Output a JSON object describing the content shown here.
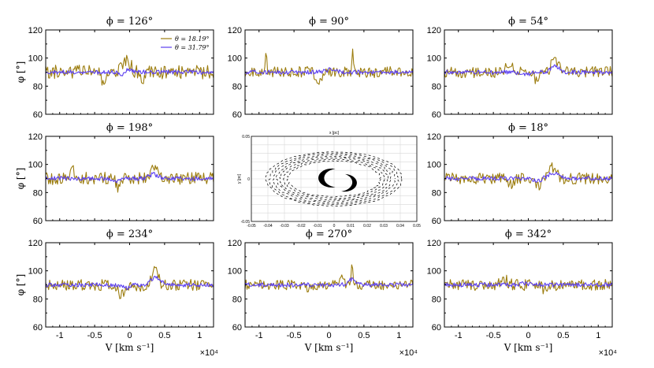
{
  "figure": {
    "y_label": "φ [°]",
    "x_label": "V [km s⁻¹]",
    "x_exponent": "×10⁴",
    "legend": [
      "θ = 18.19°",
      "θ = 31.79°"
    ],
    "colors": {
      "series1": "#9c7d0f",
      "series2": "#5b3ff0",
      "frame": "#000000"
    }
  },
  "chart_data": [
    {
      "type": "line",
      "title": "ϕ = 126°",
      "x_range": [
        -12000,
        12000
      ],
      "ylim": [
        60,
        120
      ],
      "yticks": [
        "60",
        "80",
        "100",
        "120"
      ],
      "has_legend": true,
      "series": [
        {
          "name": "θ = 18.19°",
          "mean": 90,
          "amplitude": 5,
          "seed": 11,
          "bumps": [
            [
              -500,
              8,
              600
            ],
            [
              -3800,
              -8,
              300
            ],
            [
              1800,
              -6,
              300
            ]
          ]
        },
        {
          "name": "θ = 31.79°",
          "mean": 90,
          "amplitude": 1.5,
          "seed": 12,
          "bumps": [
            [
              -500,
              2,
              700
            ],
            [
              -1200,
              -3,
              400
            ]
          ]
        }
      ]
    },
    {
      "type": "line",
      "title": "ϕ = 90°",
      "x_range": [
        -12000,
        12000
      ],
      "ylim": [
        60,
        120
      ],
      "yticks": [
        "60",
        "80",
        "100",
        "120"
      ],
      "series": [
        {
          "name": "θ = 18.19°",
          "mean": 90,
          "amplitude": 4,
          "seed": 21,
          "bumps": [
            [
              3400,
              16,
              120
            ],
            [
              -9000,
              12,
              120
            ],
            [
              -1500,
              -5,
              400
            ]
          ]
        },
        {
          "name": "θ = 31.79°",
          "mean": 90,
          "amplitude": 1.5,
          "seed": 22,
          "bumps": [
            [
              300,
              2,
              600
            ]
          ]
        }
      ]
    },
    {
      "type": "line",
      "title": "ϕ = 54°",
      "x_range": [
        -12000,
        12000
      ],
      "ylim": [
        60,
        120
      ],
      "yticks": [
        "60",
        "80",
        "100",
        "120"
      ],
      "series": [
        {
          "name": "θ = 18.19°",
          "mean": 90,
          "amplitude": 4,
          "seed": 31,
          "bumps": [
            [
              3800,
              9,
              500
            ],
            [
              -2500,
              7,
              500
            ],
            [
              1200,
              -5,
              400
            ]
          ]
        },
        {
          "name": "θ = 31.79°",
          "mean": 90,
          "amplitude": 1.5,
          "seed": 32,
          "bumps": [
            [
              3800,
              4,
              600
            ],
            [
              -500,
              -2,
              600
            ]
          ]
        }
      ]
    },
    {
      "type": "line",
      "title": "ϕ = 198°",
      "x_range": [
        -12000,
        12000
      ],
      "ylim": [
        60,
        120
      ],
      "yticks": [
        "60",
        "80",
        "100",
        "120"
      ],
      "series": [
        {
          "name": "θ = 18.19°",
          "mean": 90,
          "amplitude": 4.5,
          "seed": 41,
          "bumps": [
            [
              3400,
              10,
              400
            ],
            [
              -1500,
              -6,
              400
            ],
            [
              -8000,
              5,
              400
            ]
          ]
        },
        {
          "name": "θ = 31.79°",
          "mean": 90,
          "amplitude": 1.5,
          "seed": 42,
          "bumps": [
            [
              3400,
              3,
              600
            ],
            [
              -1800,
              -2,
              500
            ]
          ]
        }
      ]
    },
    {
      "type": "scatter",
      "title": "",
      "is_inset": true,
      "xlabel": "x [pc]",
      "ylabel": "y [pc]",
      "xlim": [
        -0.05,
        0.05
      ],
      "ylim": [
        -0.05,
        0.05
      ],
      "xticks": [
        "-0.05",
        "-0.04",
        "-0.03",
        "-0.02",
        "-0.01",
        "0",
        "0.01",
        "0.02",
        "0.03",
        "0.04",
        "0.05"
      ],
      "yticks": [
        "0.05",
        "0",
        "-0.05"
      ]
    },
    {
      "type": "line",
      "title": "ϕ = 18°",
      "x_range": [
        -12000,
        12000
      ],
      "ylim": [
        60,
        120
      ],
      "yticks": [
        "60",
        "80",
        "100",
        "120"
      ],
      "series": [
        {
          "name": "θ = 18.19°",
          "mean": 90,
          "amplitude": 4,
          "seed": 61,
          "bumps": [
            [
              3400,
              8,
              600
            ],
            [
              1500,
              -5,
              500
            ],
            [
              -2500,
              -4,
              400
            ]
          ]
        },
        {
          "name": "θ = 31.79°",
          "mean": 90,
          "amplitude": 1.5,
          "seed": 62,
          "bumps": [
            [
              3600,
              4,
              700
            ],
            [
              1200,
              -2,
              500
            ]
          ]
        }
      ]
    },
    {
      "type": "line",
      "title": "ϕ = 234°",
      "x_range": [
        -12000,
        12000
      ],
      "ylim": [
        60,
        120
      ],
      "yticks": [
        "60",
        "80",
        "100",
        "120"
      ],
      "series": [
        {
          "name": "θ = 18.19°",
          "mean": 90,
          "amplitude": 4,
          "seed": 71,
          "bumps": [
            [
              3600,
              13,
              400
            ],
            [
              -1200,
              -7,
              400
            ],
            [
              1600,
              -4,
              400
            ]
          ]
        },
        {
          "name": "θ = 31.79°",
          "mean": 90,
          "amplitude": 1.5,
          "seed": 72,
          "bumps": [
            [
              3700,
              5,
              700
            ],
            [
              -500,
              -2,
              500
            ]
          ]
        }
      ]
    },
    {
      "type": "line",
      "title": "ϕ = 270°",
      "x_range": [
        -12000,
        12000
      ],
      "ylim": [
        60,
        120
      ],
      "yticks": [
        "60",
        "80",
        "100",
        "120"
      ],
      "series": [
        {
          "name": "θ = 18.19°",
          "mean": 90,
          "amplitude": 3.5,
          "seed": 81,
          "bumps": [
            [
              3300,
              12,
              150
            ],
            [
              -3000,
              -5,
              300
            ],
            [
              1800,
              4,
              300
            ]
          ]
        },
        {
          "name": "θ = 31.79°",
          "mean": 90,
          "amplitude": 1.5,
          "seed": 82,
          "bumps": [
            [
              3300,
              4,
              500
            ]
          ]
        }
      ]
    },
    {
      "type": "line",
      "title": "ϕ = 342°",
      "x_range": [
        -12000,
        12000
      ],
      "ylim": [
        60,
        120
      ],
      "yticks": [
        "60",
        "80",
        "100",
        "120"
      ],
      "series": [
        {
          "name": "θ = 18.19°",
          "mean": 90,
          "amplitude": 4,
          "seed": 91,
          "bumps": [
            [
              -3500,
              4,
              500
            ],
            [
              2500,
              -4,
              500
            ]
          ]
        },
        {
          "name": "θ = 31.79°",
          "mean": 90,
          "amplitude": 1.5,
          "seed": 92,
          "bumps": [
            [
              -500,
              1,
              600
            ]
          ]
        }
      ]
    }
  ],
  "x_ticks": [
    {
      "value": -10000,
      "label": "-1"
    },
    {
      "value": -5000,
      "label": "-0.5"
    },
    {
      "value": 0,
      "label": "0"
    },
    {
      "value": 5000,
      "label": "0.5"
    },
    {
      "value": 10000,
      "label": "1"
    }
  ]
}
